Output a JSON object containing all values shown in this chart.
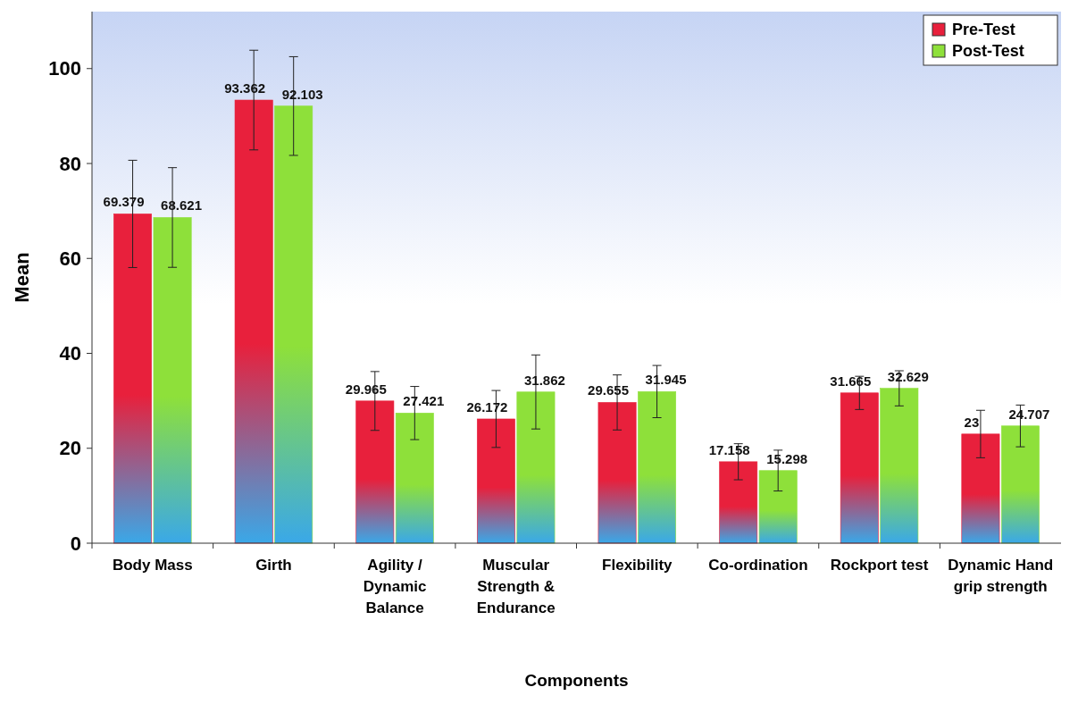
{
  "chart_data": {
    "type": "bar",
    "xlabel": "Components",
    "ylabel": "Mean",
    "categories": [
      "Body Mass",
      "Girth",
      "Agility / Dynamic Balance",
      "Muscular Strength & Endurance",
      "Flexibility",
      "Co-ordination",
      "Rockport test",
      "Dynamic Hand grip strength"
    ],
    "series": [
      {
        "name": "Pre-Test",
        "color": "#e8203c",
        "values": [
          69.379,
          93.362,
          29.965,
          26.172,
          29.655,
          17.158,
          31.665,
          23
        ],
        "errors": [
          11.3,
          10.5,
          6.2,
          6,
          5.8,
          3.8,
          3.5,
          5
        ]
      },
      {
        "name": "Post-Test",
        "color": "#8ee03a",
        "values": [
          68.621,
          92.103,
          27.421,
          31.862,
          31.945,
          15.298,
          32.629,
          24.707
        ],
        "errors": [
          10.5,
          10.4,
          5.6,
          7.8,
          5.5,
          4.3,
          3.7,
          4.4
        ]
      }
    ],
    "ylim": [
      0,
      112
    ],
    "yticks": [
      0,
      20,
      40,
      60,
      80,
      100
    ],
    "data_labels": true,
    "legend": "top right",
    "grid": false
  }
}
